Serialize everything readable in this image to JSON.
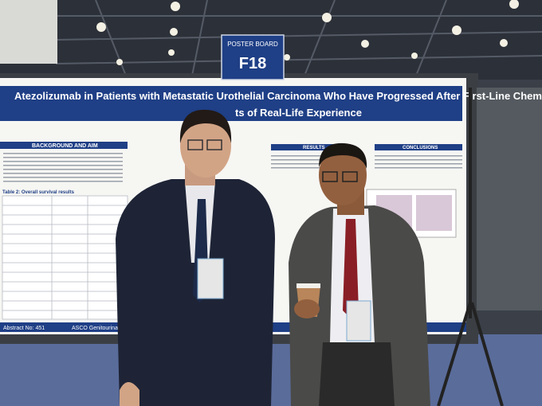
{
  "sign": {
    "label": "POSTER BOARD",
    "code": "F18"
  },
  "poster": {
    "title_line1": "Atezolizumab in Patients with Metastatic Urothelial Carcinoma Who Have Progressed After First-Line Chemotherapy:",
    "title_line2": "ts of Real-Life Experience",
    "sections": [
      "BACKGROUND AND AIM",
      "RESULTS",
      "CONCLUSIONS"
    ],
    "table_title": "Table 2: Overall survival results",
    "footer_left": "Abstract No: 451",
    "footer_center": "ASCO Genitourinary Cancers"
  }
}
